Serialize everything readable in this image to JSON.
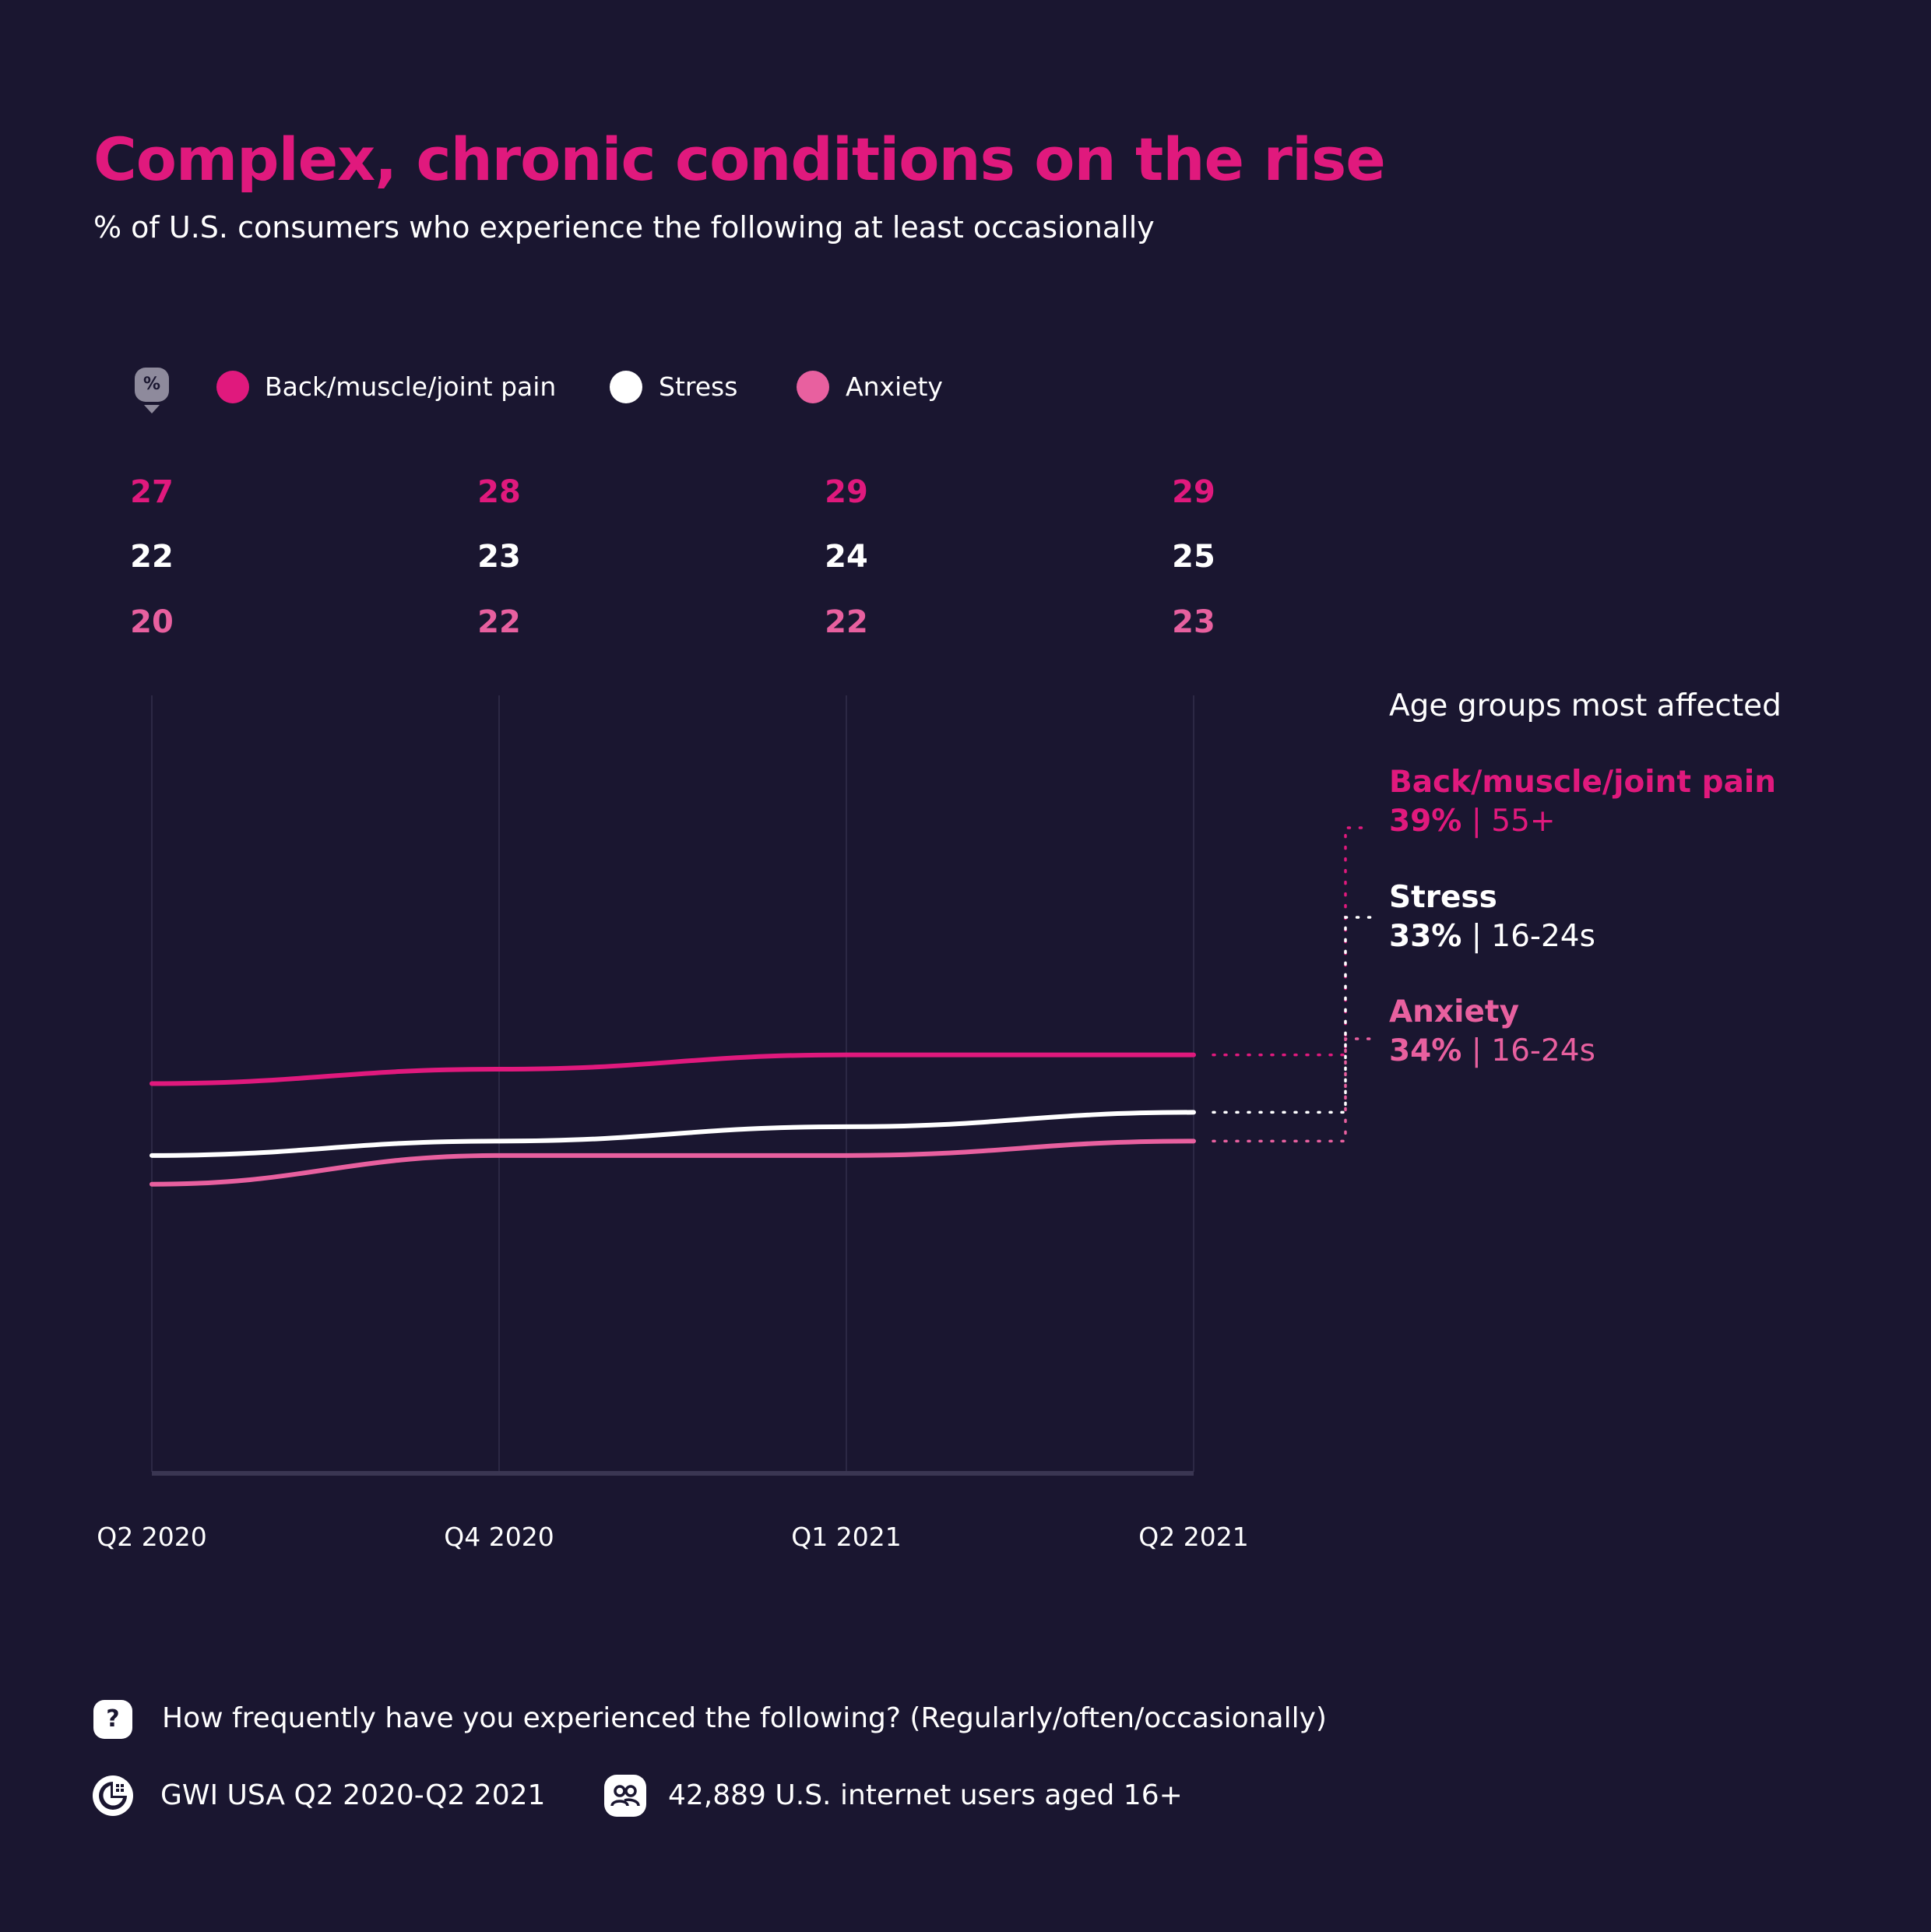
{
  "title": "Complex, chronic conditions on the rise",
  "subtitle": "% of U.S. consumers who experience the following at least occasionally",
  "legend": {
    "badge": "%",
    "items": [
      {
        "label": "Back/muscle/joint pain",
        "color": "#e0197d"
      },
      {
        "label": "Stress",
        "color": "#ffffff"
      },
      {
        "label": "Anxiety",
        "color": "#e8609f"
      }
    ]
  },
  "chart_data": {
    "type": "line",
    "title": "Complex, chronic conditions on the rise",
    "subtitle": "% of U.S. consumers who experience the following at least occasionally",
    "x": [
      "Q2 2020",
      "Q4 2020",
      "Q1 2021",
      "Q2 2021"
    ],
    "series": [
      {
        "name": "Back/muscle/joint pain",
        "color": "#e0197d",
        "values": [
          27,
          28,
          29,
          29
        ]
      },
      {
        "name": "Stress",
        "color": "#ffffff",
        "values": [
          22,
          23,
          24,
          25
        ]
      },
      {
        "name": "Anxiety",
        "color": "#e8609f",
        "values": [
          20,
          22,
          22,
          23
        ]
      }
    ],
    "ylim": [
      0,
      54
    ],
    "grid": "vertical",
    "legend_position": "top-left"
  },
  "side_panel": {
    "heading": "Age groups most affected",
    "items": [
      {
        "name": "Back/muscle/joint pain",
        "percent": "39%",
        "group": "55+",
        "color": "#e0197d"
      },
      {
        "name": "Stress",
        "percent": "33%",
        "group": "16-24s",
        "color": "#ffffff"
      },
      {
        "name": "Anxiety",
        "percent": "34%",
        "group": "16-24s",
        "color": "#e8609f"
      }
    ]
  },
  "footer": {
    "question_icon": "?",
    "question": "How frequently have you experienced the following? (Regularly/often/occasionally)",
    "source_icon": "gwi-logo-icon",
    "source": "GWI USA Q2 2020-Q2 2021",
    "audience_icon": "people-icon",
    "audience": "42,889 U.S. internet users aged 16+"
  }
}
